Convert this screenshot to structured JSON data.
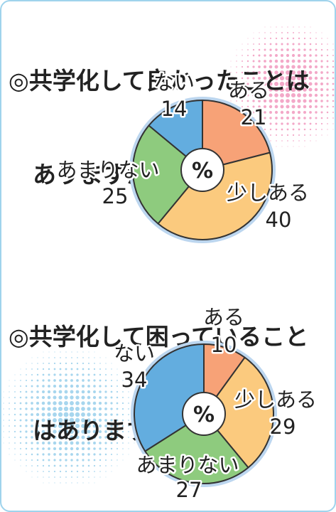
{
  "colors": {
    "aru": "#f7a277",
    "sukoshi_aru": "#fbca7e",
    "amari_nai": "#8ecb7e",
    "nai": "#63addf",
    "ring": "#bcd6ef",
    "outline": "#333333",
    "text": "#222222",
    "dots_pink": "#f3a8c8",
    "dots_blue": "#a7d6ee",
    "frame": "#9fd3ec"
  },
  "chart_data": [
    {
      "type": "pie",
      "title_lines": [
        "◎共学化して良かったことは",
        "ありますか"
      ],
      "center_label": "%",
      "slices": [
        {
          "label": "ある",
          "value": 21
        },
        {
          "label": "少しある",
          "value": 40
        },
        {
          "label": "あまりない",
          "value": 25
        },
        {
          "label": "ない",
          "value": 14
        }
      ]
    },
    {
      "type": "pie",
      "title_lines": [
        "◎共学化して困っていること",
        "はありますか"
      ],
      "center_label": "%",
      "slices": [
        {
          "label": "ある",
          "value": 10
        },
        {
          "label": "少しある",
          "value": 29
        },
        {
          "label": "あまりない",
          "value": 27
        },
        {
          "label": "ない",
          "value": 34
        }
      ]
    }
  ]
}
